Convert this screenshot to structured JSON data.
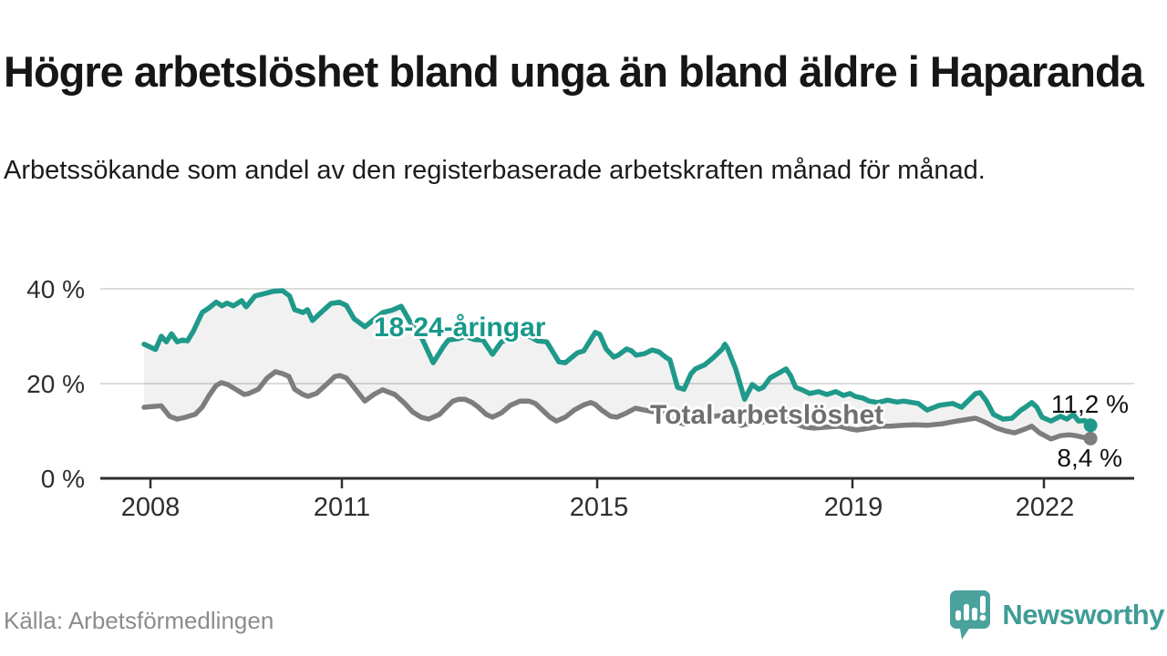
{
  "header": {
    "title": "Högre arbetslöshet bland unga än bland äldre i Haparanda",
    "subtitle": "Arbetssökande som andel av den registerbaserade arbetskraften månad för månad."
  },
  "source": {
    "label": "Källa: Arbetsförmedlingen"
  },
  "branding": {
    "name": "Newsworthy",
    "logo_icon": "bar-chart-speech-bubble-icon",
    "color": "#3f9c96"
  },
  "colors": {
    "youth_line": "#1f998a",
    "total_line": "#7d7d7d",
    "band_fill": "rgba(0,0,0,0.055)",
    "gridline": "#dcdcdc",
    "axis": "#2e2e2e",
    "end_label_text": "#111111",
    "muted_text": "#8c8c8c"
  },
  "axes": {
    "yticks": [
      {
        "value": 40,
        "label": "40 %"
      },
      {
        "value": 20,
        "label": "20 %"
      },
      {
        "value": 0,
        "label": "0 %"
      }
    ],
    "xticks": [
      {
        "value": 2008,
        "label": "2008"
      },
      {
        "value": 2011,
        "label": "2011"
      },
      {
        "value": 2015,
        "label": "2015"
      },
      {
        "value": 2019,
        "label": "2019"
      },
      {
        "value": 2022,
        "label": "2022"
      }
    ]
  },
  "chart_data": {
    "type": "line",
    "title": "Högre arbetslöshet bland unga än bland äldre i Haparanda",
    "subtitle": "Arbetssökande som andel av den registerbaserade arbetskraften månad för månad.",
    "unit": "%",
    "xlabel": "",
    "ylabel": "",
    "ylim": [
      0,
      43
    ],
    "xlim": [
      2007.9,
      2023.3
    ],
    "grid": true,
    "legend_position": "inline-labels",
    "band_between_series": true,
    "series": [
      {
        "name": "18-24-åringar",
        "color": "#1f998a",
        "end_label": "11,2 %",
        "end_value": 11.2,
        "points": [
          [
            2007.9,
            28.3
          ],
          [
            2008.08,
            27.2
          ],
          [
            2008.17,
            30.0
          ],
          [
            2008.25,
            28.8
          ],
          [
            2008.33,
            30.5
          ],
          [
            2008.42,
            28.8
          ],
          [
            2008.5,
            29.2
          ],
          [
            2008.58,
            29.0
          ],
          [
            2008.67,
            31.0
          ],
          [
            2008.81,
            35.0
          ],
          [
            2008.92,
            36.0
          ],
          [
            2009.03,
            37.2
          ],
          [
            2009.12,
            36.4
          ],
          [
            2009.2,
            37.0
          ],
          [
            2009.3,
            36.4
          ],
          [
            2009.43,
            37.5
          ],
          [
            2009.5,
            36.2
          ],
          [
            2009.64,
            38.5
          ],
          [
            2009.79,
            39.0
          ],
          [
            2009.93,
            39.5
          ],
          [
            2010.07,
            39.6
          ],
          [
            2010.18,
            38.5
          ],
          [
            2010.26,
            35.6
          ],
          [
            2010.39,
            35.0
          ],
          [
            2010.46,
            35.6
          ],
          [
            2010.54,
            33.3
          ],
          [
            2010.64,
            34.6
          ],
          [
            2010.83,
            36.9
          ],
          [
            2010.96,
            37.2
          ],
          [
            2011.07,
            36.5
          ],
          [
            2011.19,
            33.7
          ],
          [
            2011.36,
            32.0
          ],
          [
            2011.5,
            33.5
          ],
          [
            2011.64,
            35.0
          ],
          [
            2011.79,
            35.5
          ],
          [
            2011.93,
            36.3
          ],
          [
            2012.07,
            33.0
          ],
          [
            2012.26,
            29.4
          ],
          [
            2012.43,
            24.4
          ],
          [
            2012.6,
            28.0
          ],
          [
            2012.67,
            29.2
          ],
          [
            2012.83,
            29.5
          ],
          [
            2012.93,
            30.0
          ],
          [
            2013.07,
            29.3
          ],
          [
            2013.21,
            29.2
          ],
          [
            2013.36,
            26.2
          ],
          [
            2013.5,
            28.8
          ],
          [
            2013.64,
            29.5
          ],
          [
            2013.79,
            30.2
          ],
          [
            2013.93,
            30.0
          ],
          [
            2014.07,
            29.0
          ],
          [
            2014.21,
            28.8
          ],
          [
            2014.4,
            24.6
          ],
          [
            2014.5,
            24.4
          ],
          [
            2014.69,
            26.5
          ],
          [
            2014.79,
            26.9
          ],
          [
            2014.97,
            30.8
          ],
          [
            2015.04,
            30.4
          ],
          [
            2015.14,
            27.3
          ],
          [
            2015.26,
            25.6
          ],
          [
            2015.33,
            26.0
          ],
          [
            2015.46,
            27.3
          ],
          [
            2015.54,
            26.9
          ],
          [
            2015.61,
            26.0
          ],
          [
            2015.74,
            26.3
          ],
          [
            2015.86,
            27.1
          ],
          [
            2015.97,
            26.7
          ],
          [
            2016.07,
            25.6
          ],
          [
            2016.14,
            25.0
          ],
          [
            2016.26,
            19.2
          ],
          [
            2016.36,
            18.8
          ],
          [
            2016.47,
            22.1
          ],
          [
            2016.54,
            23.1
          ],
          [
            2016.69,
            24.0
          ],
          [
            2016.83,
            25.6
          ],
          [
            2016.96,
            27.3
          ],
          [
            2017.0,
            28.3
          ],
          [
            2017.04,
            27.5
          ],
          [
            2017.17,
            23.1
          ],
          [
            2017.31,
            16.7
          ],
          [
            2017.43,
            19.8
          ],
          [
            2017.53,
            18.8
          ],
          [
            2017.6,
            19.2
          ],
          [
            2017.71,
            21.2
          ],
          [
            2017.83,
            22.1
          ],
          [
            2017.96,
            23.1
          ],
          [
            2018.03,
            21.7
          ],
          [
            2018.11,
            19.2
          ],
          [
            2018.21,
            18.7
          ],
          [
            2018.33,
            17.9
          ],
          [
            2018.47,
            18.3
          ],
          [
            2018.6,
            17.7
          ],
          [
            2018.74,
            18.3
          ],
          [
            2018.86,
            17.5
          ],
          [
            2018.96,
            17.9
          ],
          [
            2019.04,
            17.3
          ],
          [
            2019.17,
            16.9
          ],
          [
            2019.26,
            16.3
          ],
          [
            2019.4,
            16.0
          ],
          [
            2019.55,
            16.5
          ],
          [
            2019.7,
            16.1
          ],
          [
            2019.8,
            16.3
          ],
          [
            2020.03,
            15.8
          ],
          [
            2020.17,
            14.4
          ],
          [
            2020.36,
            15.4
          ],
          [
            2020.57,
            15.8
          ],
          [
            2020.71,
            15.0
          ],
          [
            2020.93,
            17.9
          ],
          [
            2021.0,
            18.1
          ],
          [
            2021.1,
            16.3
          ],
          [
            2021.21,
            13.5
          ],
          [
            2021.36,
            12.5
          ],
          [
            2021.5,
            12.7
          ],
          [
            2021.64,
            14.4
          ],
          [
            2021.71,
            15.0
          ],
          [
            2021.81,
            16.0
          ],
          [
            2021.89,
            15.0
          ],
          [
            2021.97,
            12.9
          ],
          [
            2022.11,
            12.1
          ],
          [
            2022.26,
            13.1
          ],
          [
            2022.36,
            12.5
          ],
          [
            2022.46,
            13.5
          ],
          [
            2022.54,
            12.1
          ],
          [
            2022.64,
            12.2
          ],
          [
            2022.73,
            11.2
          ]
        ]
      },
      {
        "name": "Total arbetslöshet",
        "color": "#7d7d7d",
        "end_label": "8,4 %",
        "end_value": 8.4,
        "points": [
          [
            2007.9,
            15.0
          ],
          [
            2008.17,
            15.3
          ],
          [
            2008.3,
            13.1
          ],
          [
            2008.42,
            12.5
          ],
          [
            2008.55,
            12.9
          ],
          [
            2008.7,
            13.5
          ],
          [
            2008.81,
            15.0
          ],
          [
            2008.92,
            17.5
          ],
          [
            2009.03,
            19.6
          ],
          [
            2009.11,
            20.2
          ],
          [
            2009.21,
            19.8
          ],
          [
            2009.36,
            18.6
          ],
          [
            2009.47,
            17.7
          ],
          [
            2009.54,
            17.9
          ],
          [
            2009.69,
            18.8
          ],
          [
            2009.83,
            21.2
          ],
          [
            2009.96,
            22.5
          ],
          [
            2010.07,
            22.1
          ],
          [
            2010.17,
            21.5
          ],
          [
            2010.26,
            18.8
          ],
          [
            2010.39,
            17.7
          ],
          [
            2010.47,
            17.3
          ],
          [
            2010.6,
            17.9
          ],
          [
            2010.74,
            19.6
          ],
          [
            2010.89,
            21.5
          ],
          [
            2010.97,
            21.7
          ],
          [
            2011.07,
            21.2
          ],
          [
            2011.19,
            19.2
          ],
          [
            2011.36,
            16.3
          ],
          [
            2011.5,
            17.7
          ],
          [
            2011.64,
            18.7
          ],
          [
            2011.71,
            18.3
          ],
          [
            2011.83,
            17.7
          ],
          [
            2011.97,
            16.0
          ],
          [
            2012.11,
            14.0
          ],
          [
            2012.24,
            12.9
          ],
          [
            2012.36,
            12.5
          ],
          [
            2012.53,
            13.5
          ],
          [
            2012.64,
            15.0
          ],
          [
            2012.74,
            16.3
          ],
          [
            2012.83,
            16.7
          ],
          [
            2012.93,
            16.7
          ],
          [
            2013.04,
            16.0
          ],
          [
            2013.14,
            15.0
          ],
          [
            2013.26,
            13.5
          ],
          [
            2013.36,
            12.9
          ],
          [
            2013.5,
            13.8
          ],
          [
            2013.64,
            15.4
          ],
          [
            2013.79,
            16.3
          ],
          [
            2013.93,
            16.3
          ],
          [
            2014.03,
            15.8
          ],
          [
            2014.11,
            14.8
          ],
          [
            2014.26,
            12.9
          ],
          [
            2014.36,
            12.1
          ],
          [
            2014.5,
            12.9
          ],
          [
            2014.64,
            14.4
          ],
          [
            2014.79,
            15.5
          ],
          [
            2014.9,
            16.0
          ],
          [
            2014.97,
            15.6
          ],
          [
            2015.07,
            14.4
          ],
          [
            2015.21,
            13.1
          ],
          [
            2015.31,
            12.9
          ],
          [
            2015.46,
            13.8
          ],
          [
            2015.6,
            14.8
          ],
          [
            2015.74,
            14.4
          ],
          [
            2015.9,
            14.0
          ],
          [
            2016.04,
            13.7
          ],
          [
            2016.2,
            12.1
          ],
          [
            2016.36,
            11.5
          ],
          [
            2016.5,
            12.5
          ],
          [
            2016.64,
            12.9
          ],
          [
            2016.83,
            13.1
          ],
          [
            2016.96,
            13.3
          ],
          [
            2017.1,
            12.5
          ],
          [
            2017.26,
            11.2
          ],
          [
            2017.4,
            11.7
          ],
          [
            2017.6,
            11.9
          ],
          [
            2017.83,
            12.3
          ],
          [
            2017.96,
            12.5
          ],
          [
            2018.11,
            11.5
          ],
          [
            2018.26,
            10.8
          ],
          [
            2018.4,
            10.6
          ],
          [
            2018.6,
            10.8
          ],
          [
            2018.8,
            11.0
          ],
          [
            2018.97,
            10.4
          ],
          [
            2019.07,
            10.2
          ],
          [
            2019.26,
            10.6
          ],
          [
            2019.46,
            11.0
          ],
          [
            2019.6,
            11.0
          ],
          [
            2019.8,
            11.2
          ],
          [
            2019.97,
            11.3
          ],
          [
            2020.17,
            11.2
          ],
          [
            2020.4,
            11.5
          ],
          [
            2020.64,
            12.1
          ],
          [
            2020.83,
            12.5
          ],
          [
            2020.93,
            12.7
          ],
          [
            2021.07,
            11.9
          ],
          [
            2021.26,
            10.6
          ],
          [
            2021.4,
            10.0
          ],
          [
            2021.54,
            9.6
          ],
          [
            2021.74,
            10.6
          ],
          [
            2021.81,
            11.0
          ],
          [
            2021.93,
            9.6
          ],
          [
            2022.11,
            8.3
          ],
          [
            2022.26,
            9.0
          ],
          [
            2022.4,
            9.2
          ],
          [
            2022.5,
            9.0
          ],
          [
            2022.6,
            8.7
          ],
          [
            2022.73,
            8.4
          ]
        ]
      }
    ]
  }
}
